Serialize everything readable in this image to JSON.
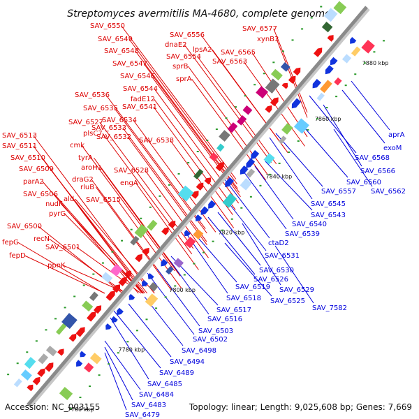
{
  "title": "Streptomyces avermitilis MA-4680, complete genome",
  "footer": {
    "accession": "Accession: NC_003155",
    "summary": "Topology: linear; Length: 9,025,608 bp; Genes: 7,669"
  },
  "colors": {
    "forward_label": "#dd0000",
    "reverse_label": "#0000dd",
    "backbone": "#8a8a8a",
    "tick_dot": "#2a9a2a"
  },
  "ticks": [
    "7760 kbp",
    "7780 kbp",
    "7800 kbp",
    "7820 kbp",
    "7840 kbp",
    "7860 kbp",
    "7880 kbp"
  ],
  "forward_genes": [
    "SAV_6577",
    "xynB3",
    "SAV_6565",
    "SAV_6563",
    "lpsA2",
    "SAV_6556",
    "SAV_6550",
    "dnaE2",
    "SAV_6549",
    "SAV_6554",
    "SAV_6548",
    "sprB",
    "SAV_6547",
    "sprA",
    "SAV_6546",
    "SAV_6544",
    "SAV_6536",
    "fadE12",
    "SAV_6541",
    "SAV_6535",
    "SAV_6534",
    "SAV_6527",
    "SAV_6533",
    "plsC7",
    "SAV_6532",
    "SAV_6538",
    "SAV_6513",
    "cmk",
    "SAV_6511",
    "tyrA",
    "SAV_6510",
    "aroH1",
    "SAV_6528",
    "SAV_6509",
    "draG2",
    "engA",
    "parA2",
    "rluB",
    "SAV_6506",
    "ald",
    "SAV_6515",
    "nudF",
    "pyrG",
    "SAV_6500",
    "recN",
    "SAV_6501",
    "fepG",
    "fepD",
    "ppnK"
  ],
  "reverse_genes": [
    "aprA",
    "exoM",
    "SAV_6568",
    "SAV_6566",
    "SAV_6560",
    "SAV_6557",
    "SAV_6562",
    "SAV_6545",
    "SAV_6543",
    "SAV_6540",
    "SAV_6539",
    "ctaD2",
    "SAV_6531",
    "SAV_6530",
    "SAV_6526",
    "SAV_6529",
    "SAV_6519",
    "SAV_6525",
    "SAV_7582",
    "SAV_6518",
    "SAV_6517",
    "SAV_6516",
    "SAV_6503",
    "SAV_6502",
    "SAV_6498",
    "SAV_6494",
    "SAV_6489",
    "SAV_6485",
    "SAV_6484",
    "SAV_6483",
    "SAV_6479"
  ]
}
